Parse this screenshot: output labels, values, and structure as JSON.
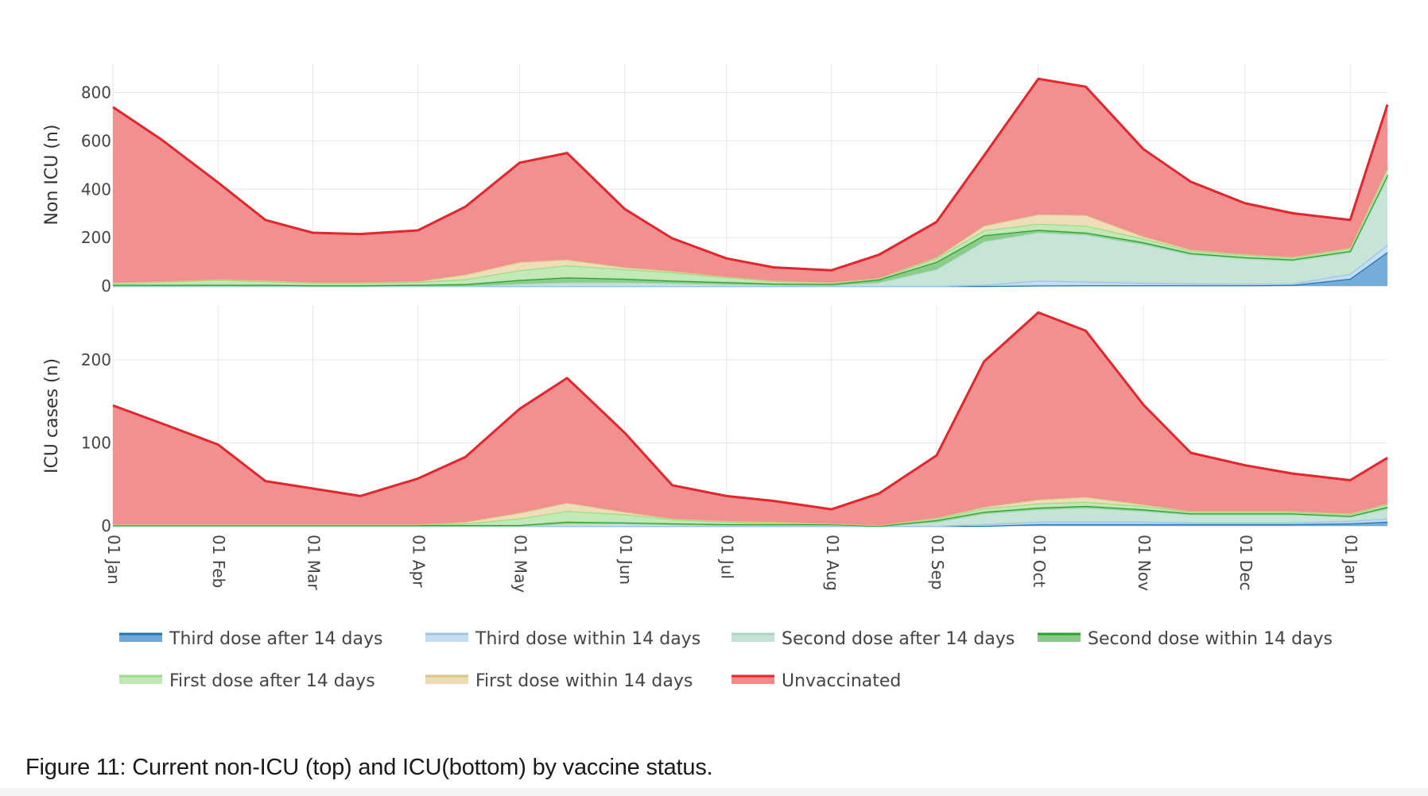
{
  "caption": "Figure 11: Current non-ICU (top) and ICU(bottom) by vaccine status.",
  "chart_data": [
    {
      "type": "area",
      "stacked": true,
      "ylabel": "Non ICU (n)",
      "ylim": [
        0,
        920
      ],
      "yticks": [
        0,
        200,
        400,
        600,
        800
      ],
      "x": [
        "2021-01-01",
        "2021-01-15",
        "2021-02-01",
        "2021-02-15",
        "2021-03-01",
        "2021-03-15",
        "2021-04-01",
        "2021-04-15",
        "2021-05-01",
        "2021-05-15",
        "2021-06-01",
        "2021-06-15",
        "2021-07-01",
        "2021-07-15",
        "2021-08-01",
        "2021-08-15",
        "2021-09-01",
        "2021-09-15",
        "2021-10-01",
        "2021-10-15",
        "2021-11-01",
        "2021-11-15",
        "2021-12-01",
        "2021-12-15",
        "2022-01-01",
        "2022-01-12"
      ],
      "series": [
        {
          "name": "Third dose after 14 days",
          "values": [
            0,
            0,
            0,
            0,
            0,
            0,
            0,
            0,
            0,
            0,
            0,
            0,
            0,
            0,
            0,
            0,
            0,
            0,
            2,
            3,
            3,
            3,
            3,
            4,
            30,
            140
          ]
        },
        {
          "name": "Third dose within 14 days",
          "values": [
            0,
            0,
            0,
            0,
            0,
            0,
            0,
            0,
            0,
            0,
            0,
            0,
            0,
            0,
            0,
            0,
            0,
            5,
            20,
            15,
            10,
            8,
            6,
            6,
            20,
            30
          ]
        },
        {
          "name": "Second dose after 14 days",
          "values": [
            0,
            0,
            0,
            0,
            0,
            0,
            0,
            0,
            10,
            15,
            15,
            12,
            8,
            5,
            3,
            15,
            70,
            180,
            200,
            195,
            160,
            120,
            105,
            95,
            90,
            280
          ]
        },
        {
          "name": "Second dose within 14 days",
          "values": [
            5,
            5,
            5,
            5,
            3,
            3,
            5,
            8,
            15,
            20,
            15,
            10,
            8,
            5,
            5,
            12,
            30,
            25,
            10,
            8,
            8,
            5,
            5,
            5,
            5,
            10
          ]
        },
        {
          "name": "First dose after 14 days",
          "values": [
            8,
            12,
            20,
            15,
            10,
            10,
            12,
            20,
            40,
            50,
            40,
            35,
            20,
            10,
            5,
            5,
            15,
            20,
            25,
            28,
            15,
            10,
            10,
            8,
            10,
            25
          ]
        },
        {
          "name": "First dose within 14 days",
          "values": [
            2,
            2,
            3,
            3,
            2,
            2,
            3,
            20,
            35,
            25,
            8,
            5,
            3,
            2,
            2,
            2,
            5,
            20,
            40,
            45,
            10,
            5,
            3,
            3,
            3,
            5
          ]
        },
        {
          "name": "Unvaccinated",
          "values": [
            725,
            590,
            400,
            250,
            205,
            200,
            210,
            280,
            410,
            440,
            240,
            135,
            75,
            55,
            50,
            95,
            145,
            290,
            560,
            530,
            360,
            280,
            210,
            180,
            115,
            260
          ]
        }
      ]
    },
    {
      "type": "area",
      "stacked": true,
      "ylabel": "ICU cases (n)",
      "ylim": [
        0,
        265
      ],
      "yticks": [
        0,
        100,
        200
      ],
      "x": [
        "2021-01-01",
        "2021-01-15",
        "2021-02-01",
        "2021-02-15",
        "2021-03-01",
        "2021-03-15",
        "2021-04-01",
        "2021-04-15",
        "2021-05-01",
        "2021-05-15",
        "2021-06-01",
        "2021-06-15",
        "2021-07-01",
        "2021-07-15",
        "2021-08-01",
        "2021-08-15",
        "2021-09-01",
        "2021-09-15",
        "2021-10-01",
        "2021-10-15",
        "2021-11-01",
        "2021-11-15",
        "2021-12-01",
        "2021-12-15",
        "2022-01-01",
        "2022-01-12"
      ],
      "series": [
        {
          "name": "Third dose after 14 days",
          "values": [
            0,
            0,
            0,
            0,
            0,
            0,
            0,
            0,
            0,
            0,
            0,
            0,
            0,
            0,
            0,
            0,
            0,
            0,
            2,
            2,
            2,
            2,
            2,
            2,
            3,
            5
          ]
        },
        {
          "name": "Third dose within 14 days",
          "values": [
            0,
            0,
            0,
            0,
            0,
            0,
            0,
            0,
            0,
            0,
            0,
            0,
            0,
            0,
            0,
            0,
            0,
            2,
            3,
            3,
            3,
            2,
            2,
            2,
            3,
            4
          ]
        },
        {
          "name": "Second dose after 14 days",
          "values": [
            0,
            0,
            0,
            0,
            0,
            0,
            0,
            0,
            0,
            3,
            3,
            2,
            1,
            1,
            1,
            0,
            5,
            13,
            15,
            17,
            13,
            10,
            10,
            10,
            5,
            12
          ]
        },
        {
          "name": "Second dose within 14 days",
          "values": [
            1,
            1,
            1,
            1,
            1,
            1,
            1,
            1,
            1,
            2,
            1,
            1,
            1,
            1,
            1,
            0,
            2,
            2,
            2,
            2,
            2,
            1,
            1,
            1,
            1,
            2
          ]
        },
        {
          "name": "First dose after 14 days",
          "values": [
            1,
            1,
            1,
            1,
            1,
            1,
            1,
            2,
            8,
            13,
            10,
            5,
            3,
            2,
            1,
            1,
            2,
            4,
            5,
            5,
            4,
            2,
            2,
            2,
            2,
            3
          ]
        },
        {
          "name": "First dose within 14 days",
          "values": [
            0,
            0,
            0,
            0,
            0,
            0,
            0,
            2,
            7,
            10,
            3,
            1,
            1,
            1,
            0,
            0,
            1,
            2,
            5,
            6,
            2,
            1,
            1,
            1,
            1,
            1
          ]
        },
        {
          "name": "Unvaccinated",
          "values": [
            143,
            122,
            96,
            52,
            43,
            34,
            55,
            78,
            125,
            150,
            95,
            40,
            30,
            25,
            17,
            38,
            75,
            175,
            225,
            200,
            120,
            70,
            55,
            45,
            40,
            55
          ]
        }
      ]
    }
  ],
  "x_ticks": [
    {
      "date": "2021-01-01",
      "label": "01 Jan"
    },
    {
      "date": "2021-02-01",
      "label": "01 Feb"
    },
    {
      "date": "2021-03-01",
      "label": "01 Mar"
    },
    {
      "date": "2021-04-01",
      "label": "01 Apr"
    },
    {
      "date": "2021-05-01",
      "label": "01 May"
    },
    {
      "date": "2021-06-01",
      "label": "01 Jun"
    },
    {
      "date": "2021-07-01",
      "label": "01 Jul"
    },
    {
      "date": "2021-08-01",
      "label": "01 Aug"
    },
    {
      "date": "2021-09-01",
      "label": "01 Sep"
    },
    {
      "date": "2021-10-01",
      "label": "01 Oct"
    },
    {
      "date": "2021-11-01",
      "label": "01 Nov"
    },
    {
      "date": "2021-12-01",
      "label": "01 Dec"
    },
    {
      "date": "2022-01-01",
      "label": "01 Jan"
    }
  ],
  "legend": {
    "placement": "bottom",
    "items": [
      {
        "name": "Third dose after 14 days",
        "line": "#1f77b4",
        "fill": "#6fa8d6"
      },
      {
        "name": "Third dose within 14 days",
        "line": "#9ec5e8",
        "fill": "#c3dcf0"
      },
      {
        "name": "Second dose after 14 days",
        "line": "#a8d5c2",
        "fill": "#c4e3d6"
      },
      {
        "name": "Second dose within 14 days",
        "line": "#2ca02c",
        "fill": "#85c985"
      },
      {
        "name": "First dose after 14 days",
        "line": "#98df8a",
        "fill": "#c0e8b4"
      },
      {
        "name": "First dose within 14 days",
        "line": "#dbc184",
        "fill": "#ecdcb5"
      },
      {
        "name": "Unvaccinated",
        "line": "#e3262b",
        "fill": "#f08a8a"
      }
    ]
  }
}
